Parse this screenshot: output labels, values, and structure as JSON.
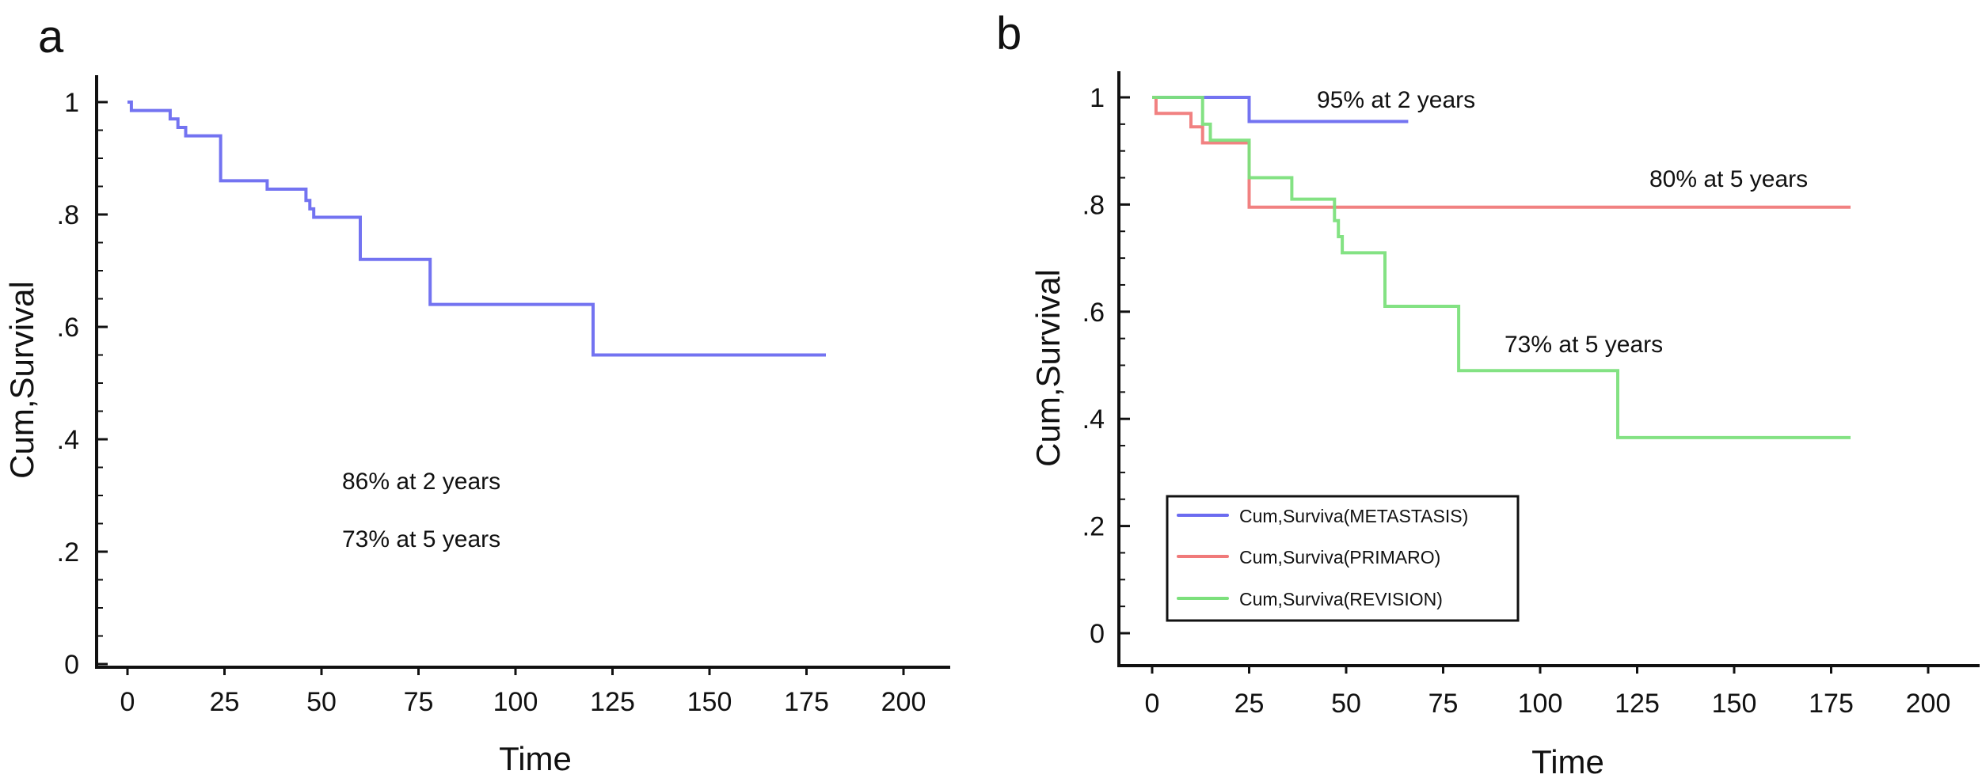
{
  "chart_data": [
    {
      "panel": "a",
      "type": "line",
      "step": true,
      "xlabel": "Time",
      "ylabel": "Cum,Survival",
      "xlim": [
        0,
        200
      ],
      "ylim": [
        0,
        1
      ],
      "x_ticks": [
        "0",
        "25",
        "50",
        "75",
        "100",
        "125",
        "150",
        "175",
        "200"
      ],
      "y_ticks": [
        "0",
        ".2",
        ".4",
        ".6",
        ".8",
        "1"
      ],
      "grid": false,
      "annotations": [
        "86% at 2 years",
        "73% at 5 years"
      ],
      "series": [
        {
          "color": "#6b6bf0",
          "x": [
            0,
            1,
            11,
            13,
            15,
            24,
            36,
            46,
            47,
            48,
            60,
            78,
            120,
            180
          ],
          "y": [
            1.0,
            0.985,
            0.97,
            0.955,
            0.94,
            0.86,
            0.845,
            0.825,
            0.81,
            0.795,
            0.72,
            0.64,
            0.55,
            0.55
          ]
        }
      ]
    },
    {
      "panel": "b",
      "type": "line",
      "step": true,
      "xlabel": "Time",
      "ylabel": "Cum,Survival",
      "xlim": [
        0,
        200
      ],
      "ylim": [
        0,
        1
      ],
      "x_ticks": [
        "0",
        "25",
        "50",
        "75",
        "100",
        "125",
        "150",
        "175",
        "200"
      ],
      "y_ticks": [
        "0",
        ".2",
        ".4",
        ".6",
        ".8",
        "1"
      ],
      "grid": false,
      "legend_position": "bottom-left",
      "annotations": [
        "95% at 2 years",
        "80% at 5 years",
        "73% at 5 years"
      ],
      "series": [
        {
          "name": "Cum,Surviva(METASTASIS)",
          "color": "#6b6bf0",
          "x": [
            0,
            25,
            66
          ],
          "y": [
            1.0,
            0.955,
            0.955
          ]
        },
        {
          "name": "Cum,Surviva(PRIMARO)",
          "color": "#f07a7a",
          "x": [
            0,
            1,
            10,
            13,
            25,
            180
          ],
          "y": [
            1.0,
            0.97,
            0.945,
            0.915,
            0.795,
            0.795
          ]
        },
        {
          "name": "Cum,Surviva(REVISION)",
          "color": "#7ce07c",
          "x": [
            0,
            13,
            15,
            25,
            36,
            47,
            48,
            49,
            60,
            79,
            120,
            180
          ],
          "y": [
            1.0,
            0.95,
            0.92,
            0.85,
            0.81,
            0.77,
            0.74,
            0.71,
            0.61,
            0.49,
            0.365,
            0.365
          ]
        }
      ]
    }
  ],
  "panels": [
    {
      "letter": "a",
      "annotations": [
        "86% at 2 years",
        "73% at 5 years"
      ]
    },
    {
      "letter": "b",
      "annotations": [
        "95% at 2 years",
        "80% at 5 years",
        "73% at 5 years"
      ]
    }
  ]
}
